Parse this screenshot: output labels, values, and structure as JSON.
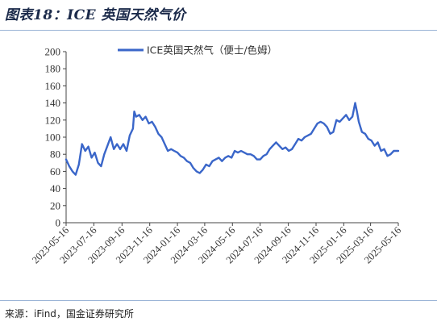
{
  "header": {
    "title": "图表18：ICE 英国天然气价"
  },
  "footer": {
    "source": "来源：iFind，国金证券研究所"
  },
  "colors": {
    "line": "#3a66c9",
    "axis": "#444444",
    "text": "#333333",
    "rule": "#9ab3d6"
  },
  "chart_data": {
    "type": "line",
    "title": "",
    "xlabel": "",
    "ylabel": "",
    "ylim": [
      0,
      200
    ],
    "yticks": [
      0,
      20,
      40,
      60,
      80,
      100,
      120,
      140,
      160,
      180,
      200
    ],
    "xticks": [
      "2023-05-16",
      "2023-07-16",
      "2023-09-16",
      "2023-11-16",
      "2024-01-16",
      "2024-03-16",
      "2024-05-16",
      "2024-07-16",
      "2024-09-16",
      "2024-11-16",
      "2025-01-16",
      "2025-03-16",
      "2025-05-16"
    ],
    "xlim": [
      "2023-05-16",
      "2025-05-16"
    ],
    "grid": false,
    "legend": "top-center",
    "series": [
      {
        "name": "ICE英国天然气（便士/色姆）",
        "points": [
          [
            "2023-05-16",
            74
          ],
          [
            "2023-05-23",
            66
          ],
          [
            "2023-05-30",
            60
          ],
          [
            "2023-06-06",
            56
          ],
          [
            "2023-06-13",
            68
          ],
          [
            "2023-06-20",
            92
          ],
          [
            "2023-06-27",
            84
          ],
          [
            "2023-07-04",
            89
          ],
          [
            "2023-07-11",
            76
          ],
          [
            "2023-07-18",
            82
          ],
          [
            "2023-07-25",
            70
          ],
          [
            "2023-08-01",
            66
          ],
          [
            "2023-08-08",
            80
          ],
          [
            "2023-08-15",
            90
          ],
          [
            "2023-08-22",
            100
          ],
          [
            "2023-08-29",
            86
          ],
          [
            "2023-09-05",
            92
          ],
          [
            "2023-09-12",
            86
          ],
          [
            "2023-09-19",
            92
          ],
          [
            "2023-09-26",
            84
          ],
          [
            "2023-10-03",
            102
          ],
          [
            "2023-10-10",
            110
          ],
          [
            "2023-10-13",
            130
          ],
          [
            "2023-10-17",
            124
          ],
          [
            "2023-10-24",
            126
          ],
          [
            "2023-10-31",
            120
          ],
          [
            "2023-11-07",
            124
          ],
          [
            "2023-11-14",
            116
          ],
          [
            "2023-11-21",
            118
          ],
          [
            "2023-11-28",
            112
          ],
          [
            "2023-12-05",
            104
          ],
          [
            "2023-12-12",
            100
          ],
          [
            "2023-12-19",
            92
          ],
          [
            "2023-12-26",
            84
          ],
          [
            "2024-01-02",
            86
          ],
          [
            "2024-01-09",
            84
          ],
          [
            "2024-01-16",
            82
          ],
          [
            "2024-01-23",
            78
          ],
          [
            "2024-01-30",
            76
          ],
          [
            "2024-02-06",
            72
          ],
          [
            "2024-02-13",
            70
          ],
          [
            "2024-02-20",
            64
          ],
          [
            "2024-02-27",
            60
          ],
          [
            "2024-03-05",
            58
          ],
          [
            "2024-03-12",
            62
          ],
          [
            "2024-03-19",
            68
          ],
          [
            "2024-03-26",
            66
          ],
          [
            "2024-04-02",
            72
          ],
          [
            "2024-04-09",
            74
          ],
          [
            "2024-04-16",
            76
          ],
          [
            "2024-04-23",
            72
          ],
          [
            "2024-04-30",
            76
          ],
          [
            "2024-05-07",
            78
          ],
          [
            "2024-05-14",
            76
          ],
          [
            "2024-05-21",
            84
          ],
          [
            "2024-05-28",
            82
          ],
          [
            "2024-06-04",
            84
          ],
          [
            "2024-06-11",
            82
          ],
          [
            "2024-06-18",
            80
          ],
          [
            "2024-06-25",
            80
          ],
          [
            "2024-07-02",
            78
          ],
          [
            "2024-07-09",
            74
          ],
          [
            "2024-07-16",
            74
          ],
          [
            "2024-07-23",
            78
          ],
          [
            "2024-07-30",
            80
          ],
          [
            "2024-08-06",
            86
          ],
          [
            "2024-08-13",
            90
          ],
          [
            "2024-08-20",
            94
          ],
          [
            "2024-08-27",
            90
          ],
          [
            "2024-09-03",
            86
          ],
          [
            "2024-09-10",
            88
          ],
          [
            "2024-09-17",
            84
          ],
          [
            "2024-09-24",
            86
          ],
          [
            "2024-10-01",
            92
          ],
          [
            "2024-10-08",
            98
          ],
          [
            "2024-10-15",
            96
          ],
          [
            "2024-10-22",
            100
          ],
          [
            "2024-10-29",
            102
          ],
          [
            "2024-11-05",
            104
          ],
          [
            "2024-11-12",
            110
          ],
          [
            "2024-11-19",
            116
          ],
          [
            "2024-11-26",
            118
          ],
          [
            "2024-12-03",
            116
          ],
          [
            "2024-12-10",
            112
          ],
          [
            "2024-12-17",
            104
          ],
          [
            "2024-12-24",
            106
          ],
          [
            "2024-12-31",
            120
          ],
          [
            "2025-01-07",
            118
          ],
          [
            "2025-01-14",
            122
          ],
          [
            "2025-01-21",
            126
          ],
          [
            "2025-01-28",
            120
          ],
          [
            "2025-02-04",
            124
          ],
          [
            "2025-02-10",
            140
          ],
          [
            "2025-02-14",
            130
          ],
          [
            "2025-02-18",
            118
          ],
          [
            "2025-02-25",
            106
          ],
          [
            "2025-03-04",
            104
          ],
          [
            "2025-03-11",
            98
          ],
          [
            "2025-03-18",
            96
          ],
          [
            "2025-03-25",
            90
          ],
          [
            "2025-04-01",
            94
          ],
          [
            "2025-04-08",
            84
          ],
          [
            "2025-04-15",
            86
          ],
          [
            "2025-04-22",
            78
          ],
          [
            "2025-04-29",
            80
          ],
          [
            "2025-05-06",
            84
          ],
          [
            "2025-05-16",
            84
          ]
        ]
      }
    ]
  }
}
